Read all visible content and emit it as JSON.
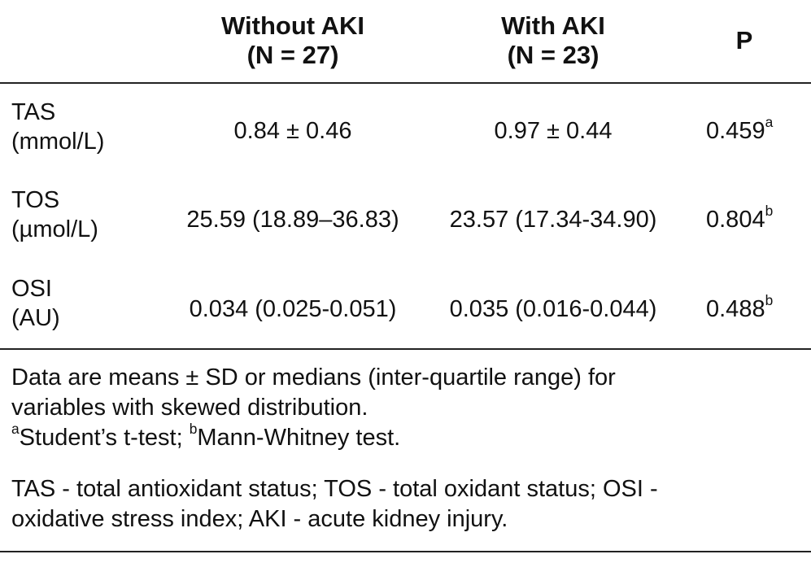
{
  "table": {
    "headers": {
      "col1_line1": "Without AKI",
      "col1_line2": "(N = 27)",
      "col2_line1": "With AKI",
      "col2_line2": "(N = 23)",
      "col3": "P"
    },
    "rows": [
      {
        "label_line1": "TAS",
        "label_line2": "(mmol/L)",
        "without_aki": "0.84 ± 0.46",
        "with_aki": "0.97 ± 0.44",
        "p": "0.459",
        "p_sup": "a"
      },
      {
        "label_line1": "TOS",
        "label_line2": "(µmol/L)",
        "without_aki": "25.59 (18.89–36.83)",
        "with_aki": "23.57 (17.34-34.90)",
        "p": "0.804",
        "p_sup": "b"
      },
      {
        "label_line1": "OSI",
        "label_line2": "(AU)",
        "without_aki": "0.034 (0.025-0.051)",
        "with_aki": "0.035 (0.016-0.044)",
        "p": "0.488",
        "p_sup": "b"
      }
    ]
  },
  "footnotes": {
    "line1": "Data are means ± SD or medians (inter-quartile range) for",
    "line2": "variables with skewed distribution.",
    "test_a_sup": "a",
    "test_a": "Student’s t-test; ",
    "test_b_sup": "b",
    "test_b": "Mann-Whitney test.",
    "line4": "TAS - total antioxidant status; TOS - total oxidant status; OSI -",
    "line5": "oxidative stress index; AKI - acute kidney injury."
  }
}
